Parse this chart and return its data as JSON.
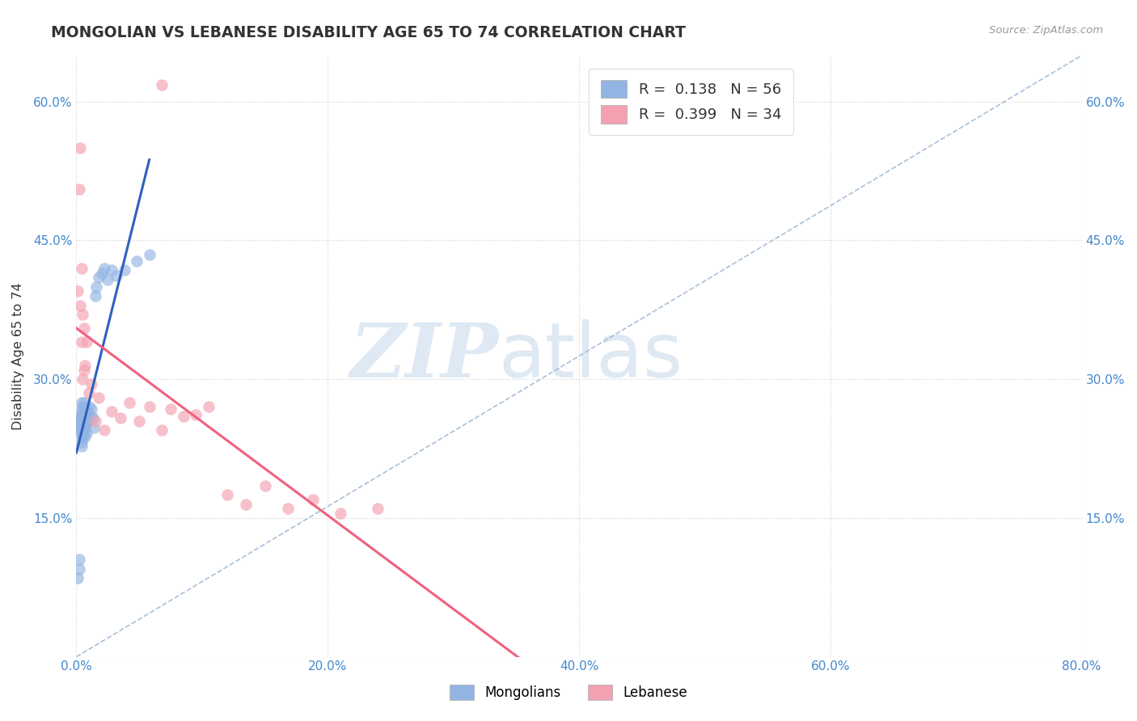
{
  "title": "MONGOLIAN VS LEBANESE DISABILITY AGE 65 TO 74 CORRELATION CHART",
  "source": "Source: ZipAtlas.com",
  "ylabel": "Disability Age 65 to 74",
  "xlim": [
    0.0,
    0.8
  ],
  "ylim": [
    0.0,
    0.65
  ],
  "x_ticks": [
    0.0,
    0.2,
    0.4,
    0.6,
    0.8
  ],
  "x_tick_labels": [
    "0.0%",
    "20.0%",
    "40.0%",
    "60.0%",
    "80.0%"
  ],
  "y_ticks": [
    0.0,
    0.15,
    0.3,
    0.45,
    0.6
  ],
  "y_tick_labels": [
    "",
    "15.0%",
    "30.0%",
    "45.0%",
    "60.0%"
  ],
  "mongolian_R": 0.138,
  "mongolian_N": 56,
  "lebanese_R": 0.399,
  "lebanese_N": 34,
  "mongolian_color": "#92b4e3",
  "lebanese_color": "#f4a0b0",
  "mongolian_line_color": "#3060c0",
  "lebanese_line_color": "#f06080",
  "diag_line_color": "#a0b8d8",
  "watermark_zip": "ZIP",
  "watermark_atlas": "atlas",
  "legend_mongolians": "Mongolians",
  "legend_lebanese": "Lebanese",
  "mongolian_scatter_x": [
    0.001,
    0.002,
    0.002,
    0.003,
    0.003,
    0.003,
    0.003,
    0.003,
    0.003,
    0.004,
    0.004,
    0.004,
    0.004,
    0.004,
    0.004,
    0.004,
    0.004,
    0.004,
    0.004,
    0.005,
    0.005,
    0.005,
    0.005,
    0.005,
    0.005,
    0.005,
    0.006,
    0.006,
    0.006,
    0.006,
    0.006,
    0.007,
    0.007,
    0.007,
    0.007,
    0.008,
    0.008,
    0.008,
    0.009,
    0.009,
    0.01,
    0.011,
    0.012,
    0.013,
    0.014,
    0.015,
    0.016,
    0.018,
    0.02,
    0.022,
    0.025,
    0.028,
    0.032,
    0.038,
    0.048,
    0.058
  ],
  "mongolian_scatter_y": [
    0.085,
    0.105,
    0.095,
    0.245,
    0.255,
    0.26,
    0.252,
    0.248,
    0.258,
    0.262,
    0.256,
    0.25,
    0.244,
    0.238,
    0.268,
    0.232,
    0.275,
    0.242,
    0.228,
    0.265,
    0.258,
    0.248,
    0.24,
    0.252,
    0.27,
    0.236,
    0.26,
    0.255,
    0.245,
    0.265,
    0.275,
    0.258,
    0.248,
    0.268,
    0.238,
    0.262,
    0.252,
    0.242,
    0.255,
    0.265,
    0.27,
    0.26,
    0.268,
    0.258,
    0.248,
    0.39,
    0.4,
    0.41,
    0.415,
    0.42,
    0.408,
    0.418,
    0.412,
    0.418,
    0.428,
    0.435
  ],
  "lebanese_scatter_x": [
    0.001,
    0.002,
    0.003,
    0.003,
    0.004,
    0.004,
    0.005,
    0.005,
    0.006,
    0.006,
    0.007,
    0.008,
    0.01,
    0.012,
    0.015,
    0.018,
    0.022,
    0.028,
    0.035,
    0.042,
    0.05,
    0.058,
    0.068,
    0.075,
    0.085,
    0.095,
    0.105,
    0.12,
    0.135,
    0.15,
    0.168,
    0.188,
    0.21,
    0.24
  ],
  "lebanese_scatter_y": [
    0.395,
    0.505,
    0.55,
    0.38,
    0.42,
    0.34,
    0.37,
    0.3,
    0.355,
    0.31,
    0.315,
    0.34,
    0.285,
    0.295,
    0.255,
    0.28,
    0.245,
    0.265,
    0.258,
    0.275,
    0.255,
    0.27,
    0.245,
    0.268,
    0.26,
    0.262,
    0.27,
    0.175,
    0.165,
    0.185,
    0.16,
    0.17,
    0.155,
    0.16
  ],
  "leb_outlier_x": [
    0.068
  ],
  "leb_outlier_y": [
    0.618
  ]
}
